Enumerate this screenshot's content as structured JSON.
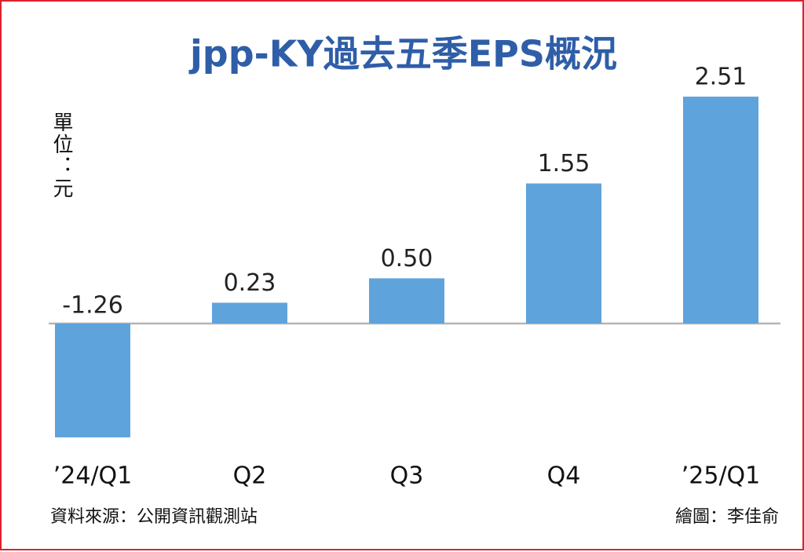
{
  "chart_data": {
    "type": "bar",
    "title": "jpp-KY過去五季EPS概況",
    "unit": "單位：元",
    "categories": [
      "’24/Q1",
      "Q2",
      "Q3",
      "Q4",
      "’25/Q1"
    ],
    "values": [
      -1.26,
      0.23,
      0.5,
      1.55,
      2.51
    ],
    "value_labels": [
      "-1.26",
      "0.23",
      "0.50",
      "1.55",
      "2.51"
    ],
    "color": "#5fa3dc",
    "source": "資料來源：公開資訊觀測站",
    "credit": "繪圖：李佳俞"
  }
}
